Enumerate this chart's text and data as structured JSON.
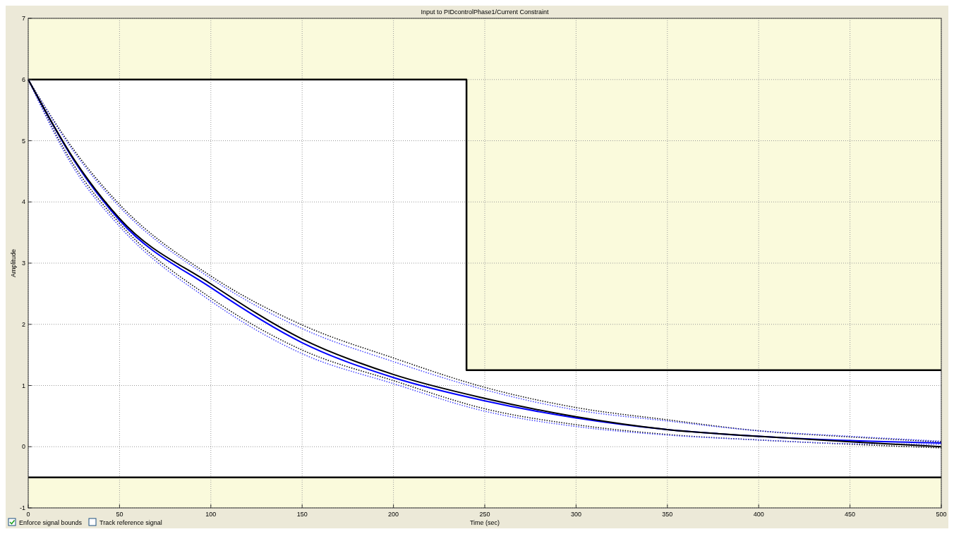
{
  "chart_data": {
    "type": "line",
    "title": "Input to PIDcontrolPhase1/Current Constraint",
    "xlabel": "Time (sec)",
    "ylabel": "Amplitude",
    "x": [
      0,
      25,
      50,
      100,
      150,
      200,
      250,
      300,
      350,
      400,
      450,
      500
    ],
    "series": [
      {
        "type": "step",
        "color": "#000000",
        "x": [
          0,
          240,
          500
        ],
        "values": [
          6,
          1.25,
          1.25
        ]
      },
      {
        "color": "#000000",
        "line_style": "dotted",
        "values": [
          6,
          4.85,
          3.96,
          2.79,
          1.99,
          1.45,
          0.97,
          0.64,
          0.44,
          0.26,
          0.16,
          0.08
        ]
      },
      {
        "color": "#4040ff",
        "line_style": "dotted",
        "values": [
          6,
          4.82,
          3.92,
          2.75,
          1.93,
          1.39,
          0.93,
          0.6,
          0.42,
          0.26,
          0.17,
          0.09
        ]
      },
      {
        "color": "#000000",
        "line_style": "dotted",
        "values": [
          6,
          4.6,
          3.65,
          2.43,
          1.58,
          1.08,
          0.62,
          0.36,
          0.2,
          0.11,
          0.04,
          -0.02
        ]
      },
      {
        "color": "#4040ff",
        "line_style": "dotted",
        "values": [
          6,
          4.55,
          3.6,
          2.38,
          1.52,
          1.03,
          0.58,
          0.33,
          0.19,
          0.11,
          0.05,
          0.04
        ]
      },
      {
        "color": "#0000ff",
        "line_style": "solid",
        "values": [
          6,
          4.68,
          3.7,
          2.6,
          1.7,
          1.13,
          0.75,
          0.47,
          0.28,
          0.17,
          0.1,
          0.06
        ]
      },
      {
        "color": "#000000",
        "line_style": "solid",
        "values": [
          6,
          4.7,
          3.73,
          2.66,
          1.76,
          1.18,
          0.79,
          0.49,
          0.28,
          0.17,
          0.08,
          0
        ]
      }
    ],
    "xlim": [
      0,
      500
    ],
    "xticks": [
      0,
      50,
      100,
      150,
      200,
      250,
      300,
      350,
      400,
      450,
      500
    ],
    "ylim": [
      -1,
      7
    ],
    "yticks": [
      -1,
      0,
      1,
      2,
      3,
      4,
      5,
      6,
      7
    ],
    "bands": [
      {
        "axis": "y",
        "from": -1,
        "to": -0.5,
        "color": "#fafadc"
      }
    ],
    "ref_lines": [
      {
        "axis": "y",
        "value": -0.5,
        "color": "#000000"
      }
    ],
    "grid": true,
    "marker": "none",
    "annotations": [
      "Enforce signal bounds",
      "Track reference signal"
    ]
  }
}
